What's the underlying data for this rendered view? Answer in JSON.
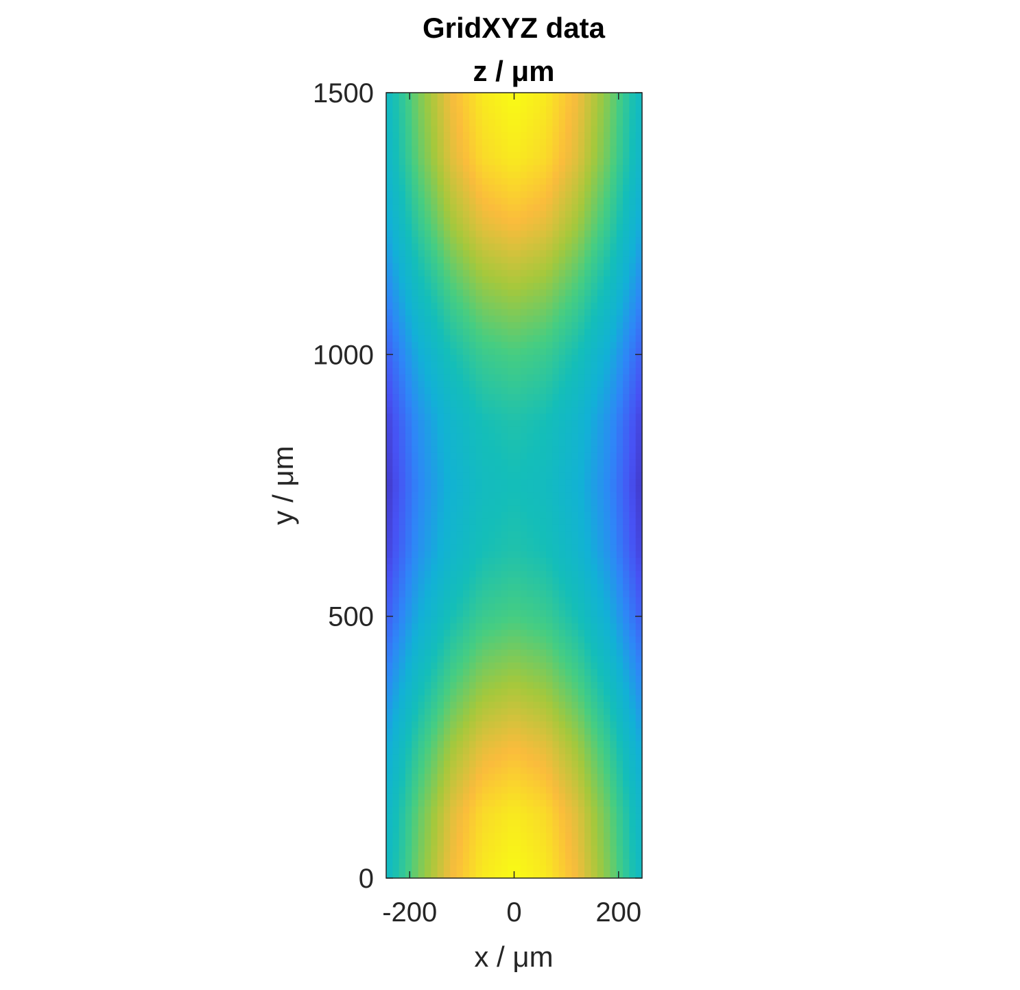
{
  "chart_data": {
    "type": "heatmap",
    "title": [
      "GridXYZ data",
      "z / μm"
    ],
    "xlabel": "x / μm",
    "ylabel": "y / μm",
    "xlim": [
      -245,
      245
    ],
    "ylim": [
      0,
      1500
    ],
    "xticks": [
      -200,
      0,
      200
    ],
    "xtick_labels": [
      "-200",
      "0",
      "200"
    ],
    "yticks": [
      0,
      500,
      1000,
      1500
    ],
    "ytick_labels": [
      "0",
      "500",
      "1000",
      "1500"
    ],
    "colormap": "parula",
    "clim": [
      0,
      1
    ],
    "grid": false,
    "x": [
      -245,
      -184,
      -122,
      -61,
      0,
      61,
      122,
      184,
      245
    ],
    "y": [
      0,
      125,
      250,
      375,
      500,
      625,
      750,
      875,
      1000,
      1125,
      1250,
      1375,
      1500
    ],
    "z": [
      [
        0.45,
        0.691,
        0.8625,
        0.966,
        1.0,
        0.966,
        0.8625,
        0.691,
        0.45
      ],
      [
        0.423,
        0.661,
        0.831,
        0.933,
        0.967,
        0.933,
        0.831,
        0.661,
        0.423
      ],
      [
        0.35,
        0.58,
        0.744,
        0.843,
        0.875,
        0.843,
        0.744,
        0.58,
        0.35
      ],
      [
        0.25,
        0.469,
        0.625,
        0.719,
        0.75,
        0.719,
        0.625,
        0.469,
        0.25
      ],
      [
        0.15,
        0.358,
        0.506,
        0.596,
        0.625,
        0.596,
        0.506,
        0.358,
        0.15
      ],
      [
        0.077,
        0.277,
        0.419,
        0.505,
        0.533,
        0.505,
        0.419,
        0.277,
        0.077
      ],
      [
        0.05,
        0.247,
        0.3875,
        0.472,
        0.5,
        0.472,
        0.3875,
        0.247,
        0.05
      ],
      [
        0.077,
        0.277,
        0.419,
        0.505,
        0.533,
        0.505,
        0.419,
        0.277,
        0.077
      ],
      [
        0.15,
        0.358,
        0.506,
        0.596,
        0.625,
        0.596,
        0.506,
        0.358,
        0.15
      ],
      [
        0.25,
        0.469,
        0.625,
        0.719,
        0.75,
        0.719,
        0.625,
        0.469,
        0.25
      ],
      [
        0.35,
        0.58,
        0.744,
        0.843,
        0.875,
        0.843,
        0.744,
        0.58,
        0.35
      ],
      [
        0.423,
        0.661,
        0.831,
        0.933,
        0.967,
        0.933,
        0.831,
        0.661,
        0.423
      ],
      [
        0.45,
        0.691,
        0.8625,
        0.966,
        1.0,
        0.966,
        0.8625,
        0.691,
        0.45
      ]
    ]
  }
}
